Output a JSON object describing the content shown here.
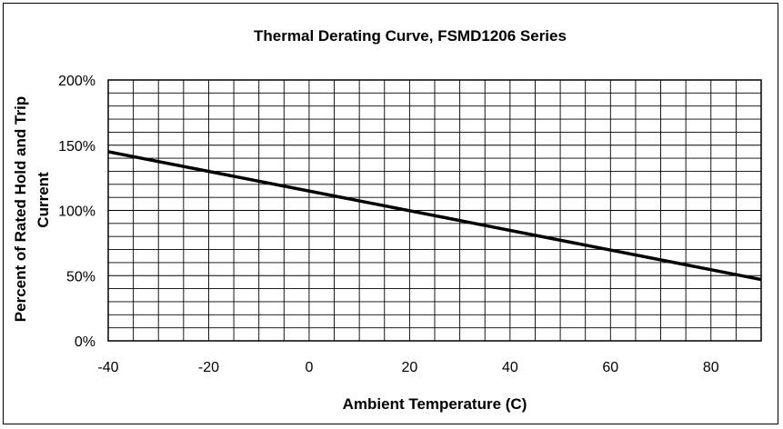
{
  "chart_data": {
    "type": "line",
    "title": "Thermal Derating Curve, FSMD1206 Series",
    "xlabel": "Ambient Temperature (C)",
    "ylabel_lines": [
      "Percent of Rated Hold  and Trip",
      "Current"
    ],
    "xlim": [
      -40,
      90
    ],
    "ylim": [
      0,
      200
    ],
    "x_ticks": [
      -40,
      -20,
      0,
      20,
      40,
      60,
      80
    ],
    "y_ticks": [
      0,
      50,
      100,
      150,
      200
    ],
    "y_tick_labels": [
      "0%",
      "50%",
      "100%",
      "150%",
      "200%"
    ],
    "x_minor_step": 5,
    "y_minor_step": 10,
    "grid": true,
    "legend": "none",
    "series": [
      {
        "x": [
          -40,
          90
        ],
        "y": [
          145,
          47
        ],
        "color": "#000000"
      }
    ]
  }
}
